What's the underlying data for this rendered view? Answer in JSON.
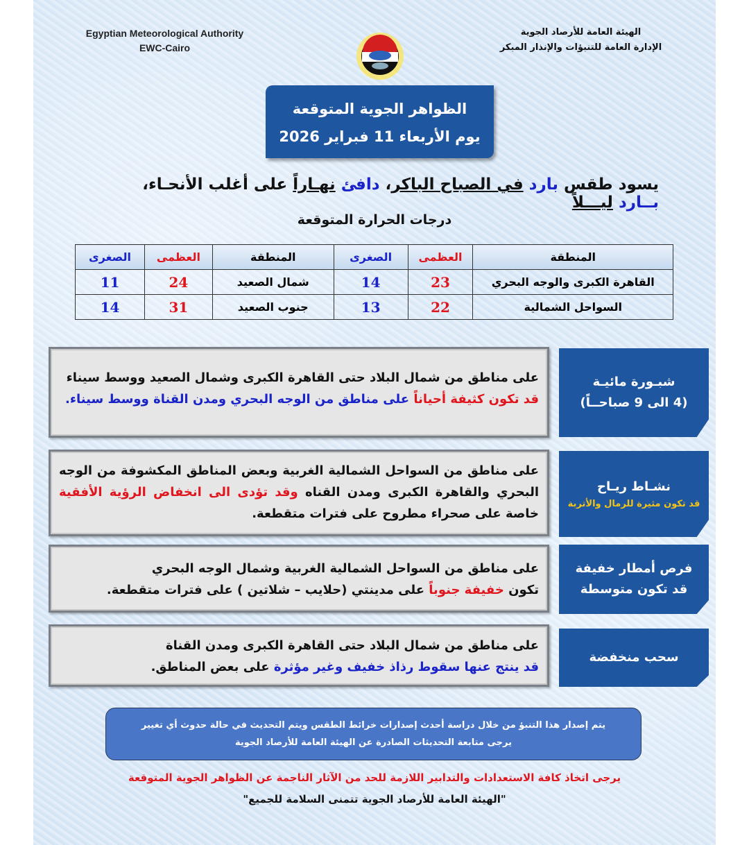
{
  "header": {
    "org_en": "Egyptian Meteorological Authority",
    "dept_en": "EWC-Cairo",
    "org_ar": "الهيئة العامة للأرصاد الجوية",
    "dept_ar": "الإدارة العامة للتنبؤات والإنذار المبكر",
    "logo": "EMA logo"
  },
  "title": {
    "line1": "الظواهر الجوية المتوقعة",
    "line2": "يوم الأربعاء 11 فبراير 2026"
  },
  "summary": {
    "p1": "يسود طقس ",
    "p2": "بارد",
    "p3": "في الصباح الباكر",
    "p4": "، ",
    "p5": "دافئ",
    "p6": "نهـاراً",
    "p7": " على أغلب الأنحـاء، ",
    "p8": "بــارد",
    "p9": "ليـــلاً"
  },
  "temps_title": "درجات الحرارة المتوقعة",
  "table": {
    "headers": [
      "المنطقة",
      "العظمى",
      "الصغرى",
      "المنطقة",
      "العظمى",
      "الصغرى"
    ],
    "rows": [
      [
        "القاهرة الكبرى والوجه البحري",
        "23",
        "14",
        "شمال الصعيد",
        "24",
        "11"
      ],
      [
        "السواحل الشمالية",
        "22",
        "13",
        "جنوب الصعيد",
        "31",
        "14"
      ]
    ]
  },
  "phenomena": [
    {
      "label1": "شبـورة مائيـة",
      "label2": "(4 الى 9 صباحــاً)",
      "t1": "على مناطق من شمال البلاد حتى القاهرة الكبرى وشمال الصعيد ووسط سيناء",
      "t2": "قد تكون كثيفة أحياناً",
      "t3": " على مناطق من الوجه البحري ومدن القناة ووسط سيناء."
    },
    {
      "label1": "نشـاط ريـاح",
      "label2": "قد تكون مثيرة للرمال والأتربة",
      "t1": "على مناطق من السواحل الشمالية الغربية وبعض المناطق المكشوفة من الوجه البحري والقاهرة الكبرى ومدن القناه ",
      "t2": "وقد تؤدى الى انخفاض الرؤية الأفقية",
      "t3": " خاصة على صحراء مطروح على فترات متقطعة."
    },
    {
      "label1": "فرص أمطار خفيفة",
      "label2": "قد تكون متوسطة",
      "t1": "على مناطق من السواحل الشمالية الغربية وشمال الوجه البحري",
      "t2a": "تكون ",
      "t2": "خفيفة جنوباً",
      "t3": " على مدينتي (حلايب – شلاتين ) على فترات متقطعة."
    },
    {
      "label1": "سحب منخفضة",
      "t1": "على مناطق من شمال البلاد حتى القاهرة الكبرى ومدن القناة",
      "t2": "قد ينتج عنها سقوط رذاذ خفيف وغير مؤثرة",
      "t3": " على بعض المناطق."
    }
  ],
  "note": {
    "line1": "يتم إصدار هذا التنبؤ من خلال دراسة أحدث إصدارات خرائط الطقس ويتم التحديث في حالة حدوث أي تغيير",
    "line2": "يرجى متابعة التحديثات الصادرة عن الهيئة العامة للأرصاد الجوية"
  },
  "footer": {
    "warning": "يرجى اتخاذ كافة الاستعدادات والتدابير اللازمة للحد من الآثار الناجمة عن الظواهر الجوية المتوقعة",
    "wish": "\"الهيئة العامة للأرصاد الجوية تتمنى السلامة للجميع\""
  },
  "colors": {
    "blue_box": "#1f56a0",
    "red": "#e0161e",
    "blue_text": "#1a23c8",
    "note_bg": "#4a76c8"
  }
}
